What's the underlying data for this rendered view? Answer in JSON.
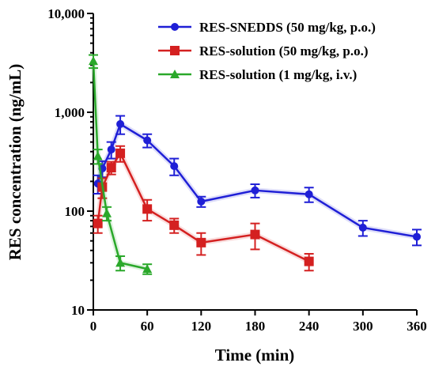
{
  "chart_data": {
    "type": "line",
    "xlabel": "Time (min)",
    "ylabel": "RES concentration (ng/mL)",
    "y_scale": "log",
    "xlim": [
      0,
      360
    ],
    "ylim": [
      10,
      10000
    ],
    "x_ticks": [
      {
        "value": 0,
        "label": "0"
      },
      {
        "value": 60,
        "label": "60"
      },
      {
        "value": 120,
        "label": "120"
      },
      {
        "value": 180,
        "label": "180"
      },
      {
        "value": 240,
        "label": "240"
      },
      {
        "value": 300,
        "label": "300"
      },
      {
        "value": 360,
        "label": "360"
      }
    ],
    "y_ticks": [
      {
        "value": 10,
        "label": "10"
      },
      {
        "value": 100,
        "label": "100"
      },
      {
        "value": 1000,
        "label": "1,000"
      },
      {
        "value": 10000,
        "label": "10,000"
      }
    ],
    "grid": false,
    "legend_position": "top-right",
    "series": [
      {
        "name": "RES-SNEDDS (50 mg/kg, p.o.)",
        "color": "#1f1fd6",
        "marker": "circle",
        "x": [
          5,
          10,
          20,
          30,
          60,
          90,
          120,
          180,
          240,
          300,
          360
        ],
        "y": [
          190,
          270,
          420,
          760,
          520,
          285,
          125,
          162,
          148,
          68,
          55
        ],
        "err": [
          40,
          50,
          80,
          160,
          80,
          55,
          15,
          25,
          25,
          12,
          10
        ]
      },
      {
        "name": "RES-solution (50 mg/kg, p.o.)",
        "color": "#d42020",
        "marker": "square",
        "x": [
          5,
          10,
          20,
          30,
          60,
          90,
          120,
          180,
          240
        ],
        "y": [
          75,
          175,
          275,
          385,
          105,
          72,
          48,
          58,
          31
        ],
        "err": [
          15,
          40,
          40,
          70,
          25,
          12,
          12,
          17,
          6
        ]
      },
      {
        "name": "RES-solution (1 mg/kg, i.v.)",
        "color": "#2aa82a",
        "marker": "triangle",
        "x": [
          0,
          5,
          15,
          30,
          60
        ],
        "y": [
          3300,
          360,
          95,
          30,
          26
        ],
        "err": [
          500,
          60,
          15,
          5,
          3
        ]
      }
    ]
  }
}
